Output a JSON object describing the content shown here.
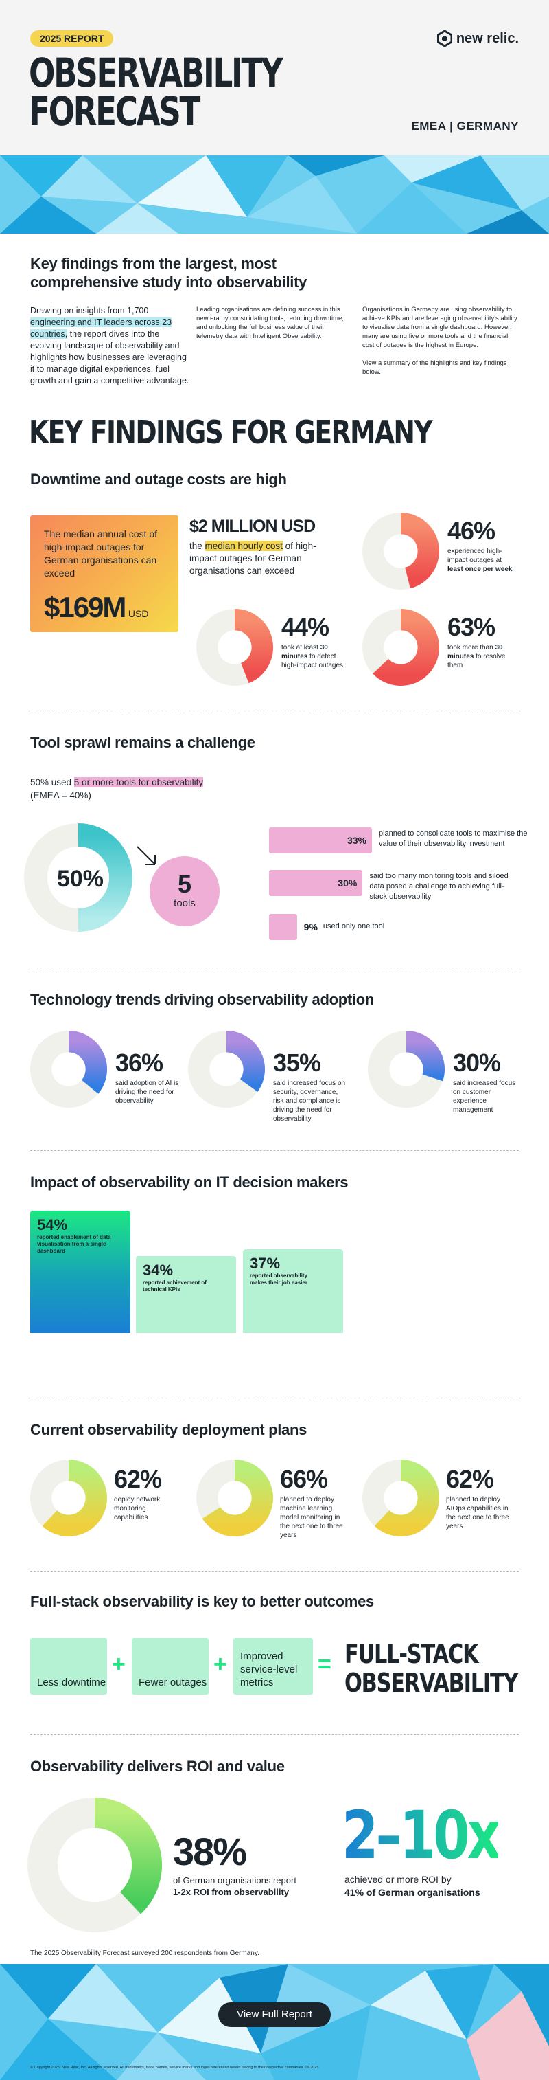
{
  "header": {
    "badge": "2025 REPORT",
    "title_line1": "OBSERVABILITY",
    "title_line2": "FORECAST",
    "brand": "new relic.",
    "region": "EMEA | GERMANY"
  },
  "intro": {
    "heading_line1": "Key findings from the largest, most",
    "heading_line2": "comprehensive study into observability",
    "col1_before": "Drawing on insights from 1,700",
    "col1_highlight": "engineering and IT leaders across 23 countries,",
    "col1_after": " the report dives into the evolving landscape of observability and highlights how businesses are leveraging it to manage digital experiences, fuel growth and gain a competitive advantage.",
    "col2": "Leading organisations are defining success in this new era by consolidating tools, reducing downtime, and unlocking the full business value of their telemetry data with Intelligent Observability.",
    "col3_p1": "Organisations in Germany are using observability to achieve KPIs and are leveraging observability's ability to visualise data from a single dashboard. However, many are using five or more tools and the financial cost of outages is the highest in Europe.",
    "col3_p2": "View a summary of the highlights and key findings below."
  },
  "key_findings_title": "KEY FINDINGS FOR GERMANY",
  "downtime": {
    "heading": "Downtime and outage costs are high",
    "card_text": "The median annual cost of high-impact outages for German organisations can exceed",
    "card_value": "$169M",
    "card_unit": "USD",
    "cost_value": "$2 MILLION USD",
    "cost_before": "the ",
    "cost_highlight": "median hourly cost",
    "cost_after": " of high-impact outages for German organisations can exceed",
    "stats": [
      {
        "pct": "46%",
        "value": 46,
        "text1": "experienced high-impact outages at ",
        "bold": "least once per week",
        "text2": ""
      },
      {
        "pct": "44%",
        "value": 44,
        "text1": "took at least ",
        "bold": "30 minutes",
        "text2": " to detect high-impact outages"
      },
      {
        "pct": "63%",
        "value": 63,
        "text1": "took more than ",
        "bold": "30 minutes",
        "text2": " to resolve them"
      }
    ]
  },
  "tools": {
    "heading": "Tool sprawl remains a challenge",
    "line_before": "50% used ",
    "line_highlight": "5 or more tools for observability",
    "line2": "(EMEA = 40%)",
    "donut_pct": "50%",
    "donut_value": 50,
    "circle_num": "5",
    "circle_label": "tools",
    "bars": [
      {
        "pct": "33%",
        "value": 33,
        "text": "planned to consolidate tools to maximise the value of their observability investment"
      },
      {
        "pct": "30%",
        "value": 30,
        "text": "said too many monitoring tools and siloed data posed a challenge to achieving full-stack observability"
      },
      {
        "pct": "9%",
        "value": 9,
        "text": "used only one tool"
      }
    ]
  },
  "trends": {
    "heading": "Technology trends driving observability adoption",
    "items": [
      {
        "pct": "36%",
        "value": 36,
        "text": "said adoption of AI is driving the need for observability"
      },
      {
        "pct": "35%",
        "value": 35,
        "text": "said increased focus on security, governance, risk and compliance is driving the need for observability"
      },
      {
        "pct": "30%",
        "value": 30,
        "text": "said increased focus on customer experience management"
      }
    ]
  },
  "impact": {
    "heading": "Impact of observability on IT decision makers",
    "items": [
      {
        "pct": "54%",
        "value": 54,
        "text": "reported enablement of data visualisation from a single dashboard"
      },
      {
        "pct": "34%",
        "value": 34,
        "text": "reported achievement of technical KPIs"
      },
      {
        "pct": "37%",
        "value": 37,
        "text": "reported observability makes their job easier"
      }
    ]
  },
  "deployment": {
    "heading": "Current observability deployment plans",
    "items": [
      {
        "pct": "62%",
        "value": 62,
        "text": "deploy network monitoring capabilities"
      },
      {
        "pct": "66%",
        "value": 66,
        "text": "planned to deploy machine learning model monitoring in the next one to three years"
      },
      {
        "pct": "62%",
        "value": 62,
        "text": "planned to deploy AIOps capabilities in the next one to three years"
      }
    ]
  },
  "fullstack": {
    "heading": "Full-stack observability is key to better outcomes",
    "boxes": [
      "Less downtime",
      "Fewer outages",
      "Improved service-level metrics"
    ],
    "result_line1": "FULL-STACK",
    "result_line2": "OBSERVABILITY"
  },
  "roi": {
    "heading": "Observability delivers ROI and value",
    "pct": "38%",
    "value": 38,
    "text1": "of German organisations report",
    "text2": "1-2x ROI from observability",
    "big": "2–10x",
    "big_text1": "achieved or more ROI by",
    "big_text2": "41% of German organisations"
  },
  "footnote": "The 2025 Observability Forecast surveyed 200 respondents from Germany.",
  "cta": "View Full Report",
  "copyright": "© Copyright 2025, New Relic, Inc. All rights reserved. All trademarks, trade names, service marks and logos referenced herein belong to their respective companies. 09.2025",
  "colors": {
    "yellow": "#f5d44f",
    "pink": "#eeaed6",
    "mint": "#b4f2d3",
    "green": "#1ce783",
    "blue": "#1a7fd4",
    "dark": "#1d252c"
  }
}
